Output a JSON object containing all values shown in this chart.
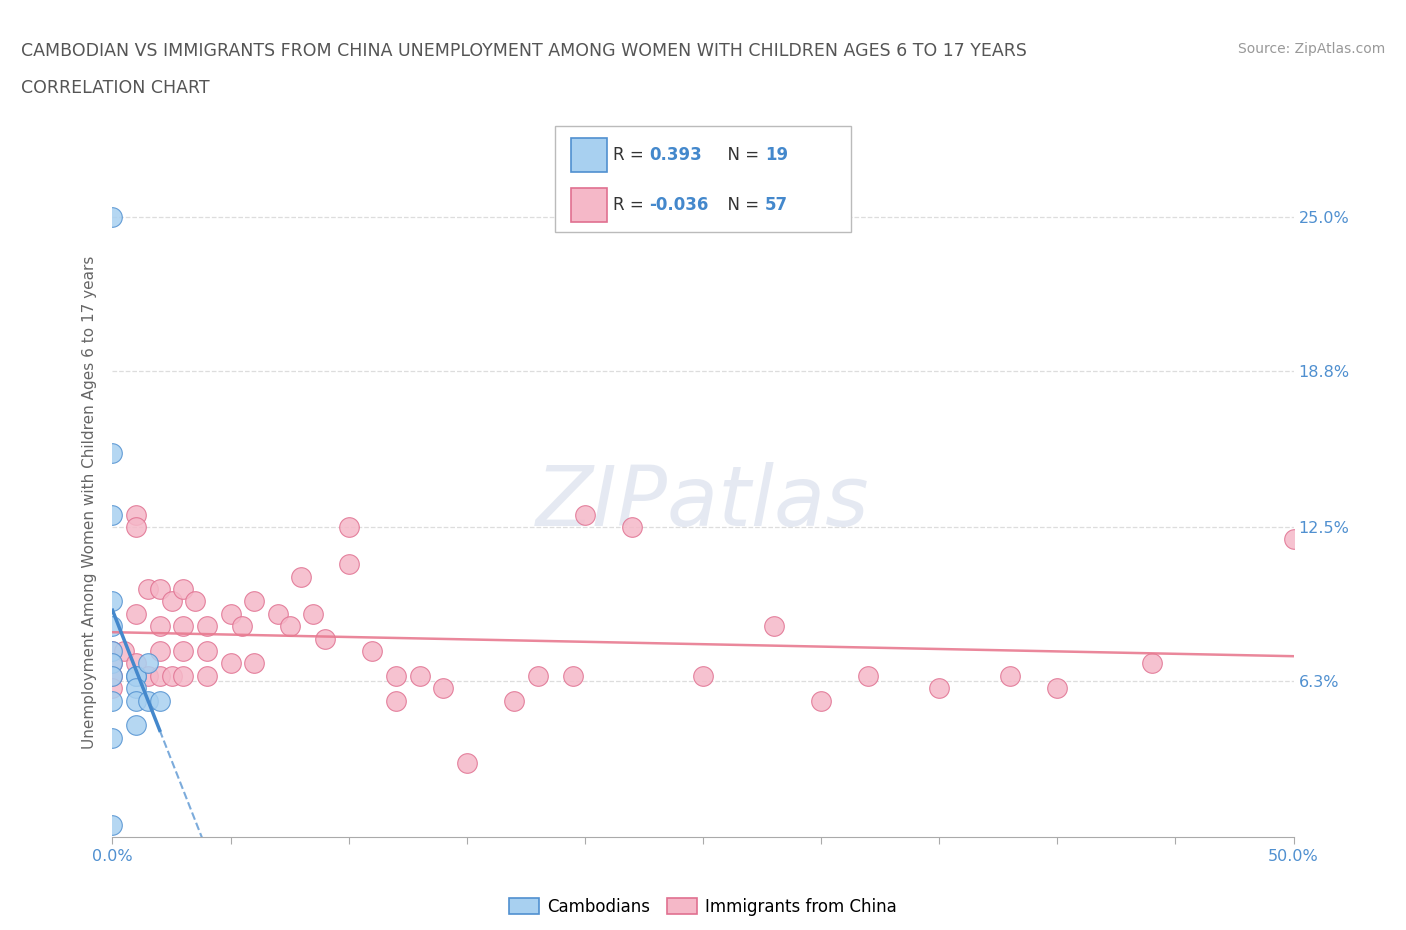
{
  "title_line1": "CAMBODIAN VS IMMIGRANTS FROM CHINA UNEMPLOYMENT AMONG WOMEN WITH CHILDREN AGES 6 TO 17 YEARS",
  "title_line2": "CORRELATION CHART",
  "source_text": "Source: ZipAtlas.com",
  "ylabel": "Unemployment Among Women with Children Ages 6 to 17 years",
  "xlim": [
    0.0,
    0.5
  ],
  "ylim": [
    0.0,
    0.27
  ],
  "xtick_positions": [
    0.0,
    0.05,
    0.1,
    0.15,
    0.2,
    0.25,
    0.3,
    0.35,
    0.4,
    0.45,
    0.5
  ],
  "xtick_labels": [
    "0.0%",
    "",
    "",
    "",
    "",
    "",
    "",
    "",
    "",
    "",
    "50.0%"
  ],
  "ytick_positions": [
    0.0,
    0.063,
    0.125,
    0.188,
    0.25
  ],
  "ytick_labels_right": [
    "6.3%",
    "12.5%",
    "18.8%",
    "25.0%"
  ],
  "watermark_text": "ZIPatlas",
  "legend_cam_R": "0.393",
  "legend_cam_N": "19",
  "legend_chi_R": "-0.036",
  "legend_chi_N": "57",
  "color_cam_fill": "#a8d0f0",
  "color_cam_edge": "#5090d0",
  "color_chi_fill": "#f5b8c8",
  "color_chi_edge": "#e07090",
  "color_cam_line": "#4488cc",
  "color_chi_line": "#e87a90",
  "grid_color": "#dddddd",
  "title_color": "#555555",
  "ytick_color": "#5090d0",
  "xtick_color": "#5090d0",
  "cambodian_x": [
    0.0,
    0.0,
    0.0,
    0.0,
    0.0,
    0.0,
    0.0,
    0.0,
    0.0,
    0.0,
    0.0,
    0.01,
    0.01,
    0.01,
    0.01,
    0.01,
    0.015,
    0.015,
    0.02
  ],
  "cambodian_y": [
    0.25,
    0.155,
    0.13,
    0.095,
    0.085,
    0.075,
    0.07,
    0.065,
    0.055,
    0.04,
    0.005,
    0.065,
    0.065,
    0.06,
    0.055,
    0.045,
    0.07,
    0.055,
    0.055
  ],
  "china_x": [
    0.0,
    0.0,
    0.0,
    0.0,
    0.005,
    0.01,
    0.01,
    0.01,
    0.01,
    0.015,
    0.015,
    0.02,
    0.02,
    0.02,
    0.02,
    0.025,
    0.025,
    0.03,
    0.03,
    0.03,
    0.03,
    0.035,
    0.04,
    0.04,
    0.04,
    0.05,
    0.05,
    0.055,
    0.06,
    0.06,
    0.07,
    0.075,
    0.08,
    0.085,
    0.09,
    0.1,
    0.1,
    0.11,
    0.12,
    0.12,
    0.13,
    0.14,
    0.15,
    0.17,
    0.18,
    0.195,
    0.2,
    0.22,
    0.25,
    0.28,
    0.3,
    0.32,
    0.35,
    0.38,
    0.4,
    0.44,
    0.5
  ],
  "china_y": [
    0.075,
    0.07,
    0.065,
    0.06,
    0.075,
    0.13,
    0.125,
    0.09,
    0.07,
    0.1,
    0.065,
    0.1,
    0.085,
    0.075,
    0.065,
    0.095,
    0.065,
    0.1,
    0.085,
    0.075,
    0.065,
    0.095,
    0.085,
    0.075,
    0.065,
    0.09,
    0.07,
    0.085,
    0.095,
    0.07,
    0.09,
    0.085,
    0.105,
    0.09,
    0.08,
    0.125,
    0.11,
    0.075,
    0.065,
    0.055,
    0.065,
    0.06,
    0.03,
    0.055,
    0.065,
    0.065,
    0.13,
    0.125,
    0.065,
    0.085,
    0.055,
    0.065,
    0.06,
    0.065,
    0.06,
    0.07,
    0.12
  ]
}
